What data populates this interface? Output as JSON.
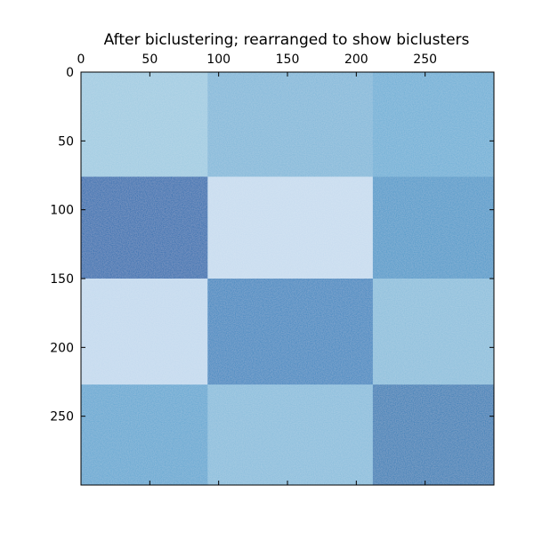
{
  "chart_data": {
    "type": "heatmap",
    "title": "After biclustering; rearranged to show biclusters",
    "xlabel": "",
    "ylabel": "",
    "xlim": [
      0,
      300
    ],
    "ylim": [
      300,
      0
    ],
    "colormap": "Blues",
    "x_ticks": [
      0,
      50,
      100,
      150,
      200,
      250
    ],
    "y_ticks": [
      0,
      50,
      100,
      150,
      200,
      250
    ],
    "x_tick_labels": [
      "0",
      "50",
      "100",
      "150",
      "200",
      "250"
    ],
    "y_tick_labels": [
      "0",
      "50",
      "100",
      "150",
      "200",
      "250"
    ],
    "col_boundaries": [
      0,
      92,
      212,
      300
    ],
    "row_boundaries": [
      0,
      76,
      150,
      227,
      300
    ],
    "block_colors": [
      [
        "#9ecae1",
        "#7fb7d9",
        "#6aaed6"
      ],
      [
        "#1c6aaf",
        "#c6dbef",
        "#4a98c9"
      ],
      [
        "#c2d9ee",
        "#3585c0",
        "#89bedc"
      ],
      [
        "#5fa6d1",
        "#86bcdc",
        "#2c7bb6"
      ]
    ],
    "grid": false
  }
}
